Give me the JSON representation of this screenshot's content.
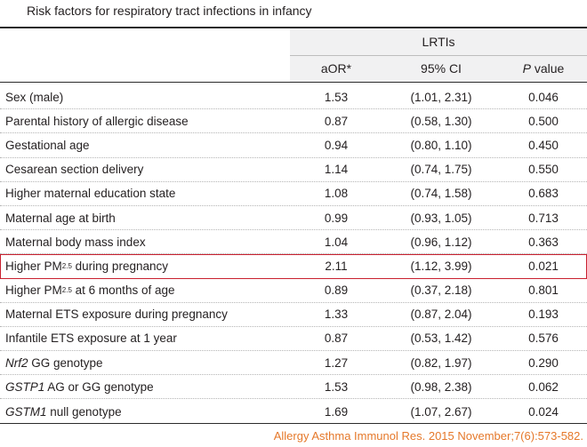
{
  "caption": "Risk factors for respiratory tract infections in infancy",
  "table": {
    "group_header": "LRTIs",
    "columns": {
      "aor": "aOR*",
      "ci": "95% CI",
      "p_italic": "P",
      "p_rest": " value"
    },
    "rows": [
      {
        "label": "Sex (male)",
        "aor": "1.53",
        "ci": "(1.01, 2.31)",
        "p": "0.046"
      },
      {
        "label": "Parental history of allergic disease",
        "aor": "0.87",
        "ci": "(0.58, 1.30)",
        "p": "0.500"
      },
      {
        "label": "Gestational age",
        "aor": "0.94",
        "ci": "(0.80, 1.10)",
        "p": "0.450"
      },
      {
        "label": "Cesarean section delivery",
        "aor": "1.14",
        "ci": "(0.74, 1.75)",
        "p": "0.550"
      },
      {
        "label": "Higher maternal education state",
        "aor": "1.08",
        "ci": "(0.74, 1.58)",
        "p": "0.683"
      },
      {
        "label": "Maternal age at birth",
        "aor": "0.99",
        "ci": "(0.93, 1.05)",
        "p": "0.713"
      },
      {
        "label": "Maternal body mass index",
        "aor": "1.04",
        "ci": "(0.96, 1.12)",
        "p": "0.363"
      },
      {
        "label_pre": "Higher PM",
        "label_sub": "2.5",
        "label_post": " during pregnancy",
        "aor": "2.11",
        "ci": "(1.12, 3.99)",
        "p": "0.021",
        "highlighted": true
      },
      {
        "label_pre": "Higher PM",
        "label_sub": "2.5",
        "label_post": " at 6 months of age",
        "aor": "0.89",
        "ci": "(0.37, 2.18)",
        "p": "0.801"
      },
      {
        "label": "Maternal ETS exposure during pregnancy",
        "aor": "1.33",
        "ci": "(0.87, 2.04)",
        "p": "0.193"
      },
      {
        "label": "Infantile ETS exposure at 1 year",
        "aor": "0.87",
        "ci": "(0.53, 1.42)",
        "p": "0.576"
      },
      {
        "label_italic": "Nrf2",
        "label_post": " GG genotype",
        "aor": "1.27",
        "ci": "(0.82, 1.97)",
        "p": "0.290"
      },
      {
        "label_italic": "GSTP1",
        "label_post": " AG or GG genotype",
        "aor": "1.53",
        "ci": "(0.98, 2.38)",
        "p": "0.062"
      },
      {
        "label_italic": "GSTM1",
        "label_post": " null genotype",
        "aor": "1.69",
        "ci": "(1.07, 2.67)",
        "p": "0.024"
      }
    ]
  },
  "citation": "Allergy Asthma Immunol Res. 2015 November;7(6):573-582.",
  "colors": {
    "highlight_border": "#c8202f",
    "citation": "#e5782a",
    "header_shade": "#f1f1f2"
  }
}
